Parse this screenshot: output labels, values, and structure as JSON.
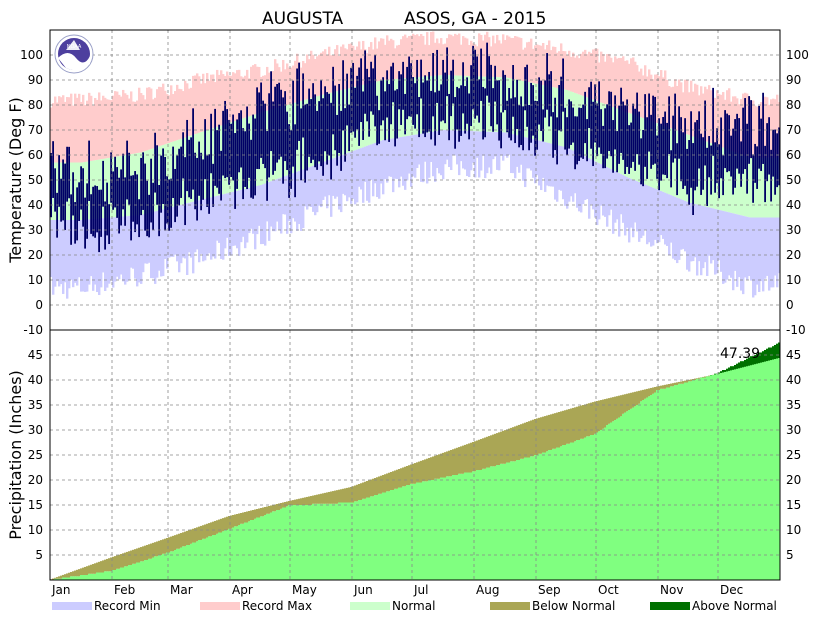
{
  "chart_data": [
    {
      "type": "bar",
      "title_left": "AUGUSTA",
      "title_right": "ASOS, GA - 2015",
      "ylabel": "Temperature (Deg F)",
      "ylim": [
        -10,
        110
      ],
      "yticks": [
        -10,
        0,
        10,
        20,
        30,
        40,
        50,
        60,
        70,
        80,
        90,
        100
      ],
      "months": [
        "Jan",
        "Feb",
        "Mar",
        "Apr",
        "May",
        "Jun",
        "Jul",
        "Aug",
        "Sep",
        "Oct",
        "Nov",
        "Dec"
      ],
      "normal_high_by_month": [
        57,
        61,
        69,
        77,
        84,
        90,
        92,
        91,
        86,
        77,
        68,
        59
      ],
      "normal_low_by_month": [
        34,
        36,
        42,
        48,
        57,
        66,
        70,
        69,
        63,
        51,
        41,
        35
      ],
      "record_high_by_month": [
        82,
        84,
        90,
        94,
        100,
        105,
        107,
        106,
        102,
        97,
        87,
        82
      ],
      "record_low_by_month": [
        7,
        12,
        18,
        28,
        38,
        48,
        55,
        56,
        43,
        30,
        18,
        8
      ],
      "observed_high_by_month": [
        52,
        55,
        67,
        79,
        86,
        92,
        93,
        91,
        85,
        77,
        72,
        73
      ],
      "observed_low_by_month": [
        33,
        32,
        43,
        50,
        58,
        71,
        73,
        72,
        65,
        54,
        48,
        50
      ],
      "grid": true
    },
    {
      "type": "area",
      "ylabel": "Precipitation (Inches)",
      "ylim": [
        0,
        50
      ],
      "yticks": [
        5,
        10,
        15,
        20,
        25,
        30,
        35,
        40,
        45
      ],
      "months": [
        "Jan",
        "Feb",
        "Mar",
        "Apr",
        "May",
        "Jun",
        "Jul",
        "Aug",
        "Sep",
        "Oct",
        "Nov",
        "Dec"
      ],
      "normal_cumulative_end_of_month": [
        4.5,
        8.4,
        12.8,
        15.8,
        18.6,
        23.1,
        27.6,
        32.2,
        35.7,
        38.7,
        41.2,
        44.4
      ],
      "observed_cumulative_end_of_month": [
        1.8,
        5.4,
        10.2,
        14.9,
        15.5,
        19.2,
        21.7,
        24.9,
        29.2,
        37.9,
        41.3,
        47.39
      ],
      "total_label": "47.39",
      "grid": true
    }
  ],
  "legend": [
    {
      "label": "Record Min",
      "color": "#ccccff"
    },
    {
      "label": "Record Max",
      "color": "#ffcccc"
    },
    {
      "label": "Normal",
      "color": "#ccffcc"
    },
    {
      "label": "Below Normal",
      "color": "#aaa655"
    },
    {
      "label": "Above Normal",
      "color": "#007000"
    }
  ],
  "colors": {
    "observed_temp": "#000066",
    "precip_observed": "#80ff80",
    "logo": "#4d3f9e"
  },
  "logo_text": "NOAA"
}
